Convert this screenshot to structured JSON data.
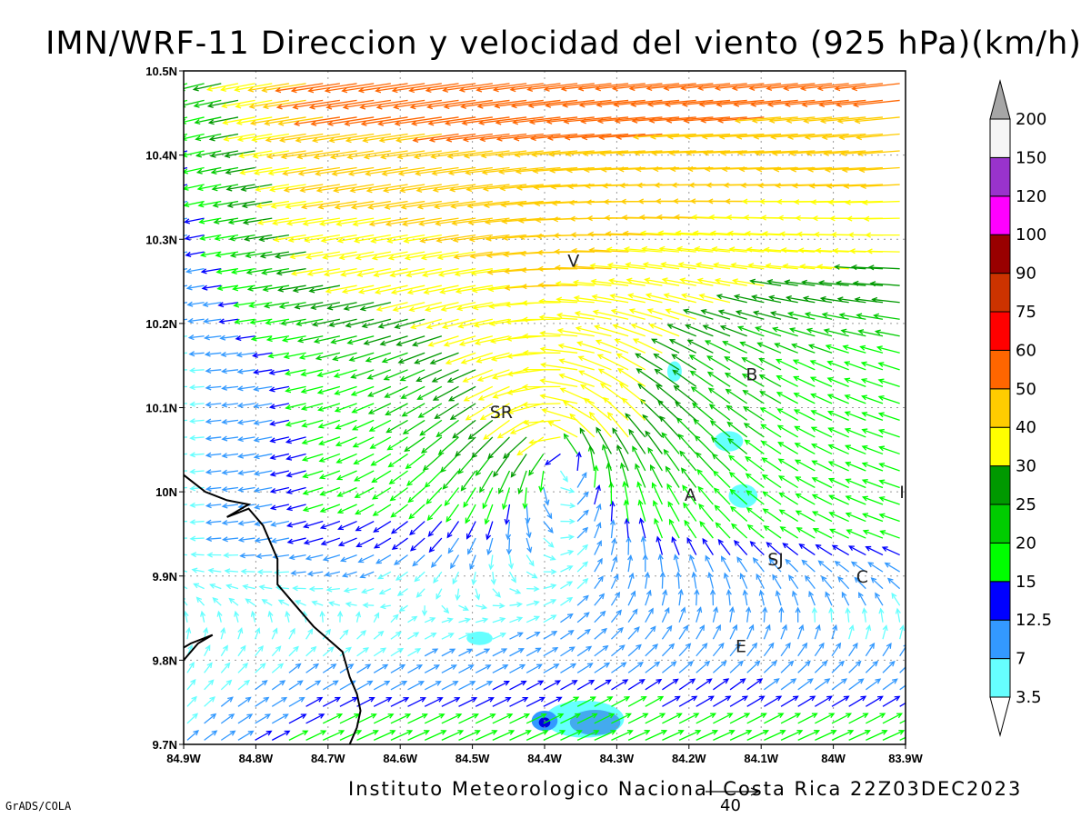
{
  "title": "IMN/WRF-11 Direccion y velocidad del viento (925 hPa)(km/h)",
  "credit": "Instituto Meteorologico Nacional Costa Rica 22Z03DEC2023",
  "software": "GrADS/COLA",
  "reference_vector": {
    "value": "40"
  },
  "map": {
    "projection": "lat-lon",
    "lon_range": [
      -84.9,
      -83.9
    ],
    "lat_range": [
      9.7,
      10.5
    ],
    "x_ticks": [
      "84.9W",
      "84.8W",
      "84.7W",
      "84.6W",
      "84.5W",
      "84.4W",
      "84.3W",
      "84.2W",
      "84.1W",
      "84W",
      "83.9W"
    ],
    "y_ticks": [
      "9.7N",
      "9.8N",
      "9.9N",
      "10N",
      "10.1N",
      "10.2N",
      "10.3N",
      "10.4N",
      "10.5N"
    ],
    "gridlines": "dotted",
    "places": [
      {
        "label": "V",
        "lon": -84.36,
        "lat": 10.275
      },
      {
        "label": "SR",
        "lon": -84.46,
        "lat": 10.095
      },
      {
        "label": "B",
        "lon": -84.113,
        "lat": 10.14
      },
      {
        "label": "A",
        "lon": -84.198,
        "lat": 9.997
      },
      {
        "label": "SJ",
        "lon": -84.08,
        "lat": 9.92
      },
      {
        "label": "C",
        "lon": -83.96,
        "lat": 9.9
      },
      {
        "label": "E",
        "lon": -84.128,
        "lat": 9.817
      },
      {
        "label": "I",
        "lon": -83.905,
        "lat": 10.0
      }
    ],
    "coastline": [
      [
        [
          -84.9,
          10.02
        ],
        [
          -84.87,
          10.0
        ],
        [
          -84.84,
          9.99
        ],
        [
          -84.81,
          9.985
        ],
        [
          -84.84,
          9.97
        ],
        [
          -84.81,
          9.98
        ],
        [
          -84.79,
          9.96
        ],
        [
          -84.77,
          9.92
        ],
        [
          -84.77,
          9.89
        ],
        [
          -84.75,
          9.87
        ],
        [
          -84.72,
          9.84
        ],
        [
          -84.68,
          9.81
        ],
        [
          -84.67,
          9.78
        ],
        [
          -84.66,
          9.76
        ],
        [
          -84.655,
          9.74
        ],
        [
          -84.66,
          9.72
        ],
        [
          -84.67,
          9.7
        ]
      ],
      [
        [
          -84.9,
          9.8
        ],
        [
          -84.88,
          9.82
        ],
        [
          -84.86,
          9.83
        ],
        [
          -84.89,
          9.82
        ],
        [
          -84.9,
          9.815
        ]
      ]
    ],
    "shaded_regions": [
      {
        "lon": -84.345,
        "lat": 9.73,
        "rlon": 0.055,
        "rlat": 0.022,
        "color": "#66ffff"
      },
      {
        "lon": -84.33,
        "lat": 9.726,
        "rlon": 0.035,
        "rlat": 0.015,
        "color": "#44aaee"
      },
      {
        "lon": -84.4,
        "lat": 9.728,
        "rlon": 0.018,
        "rlat": 0.012,
        "color": "#3399ff"
      },
      {
        "lon": -84.4,
        "lat": 9.726,
        "rlon": 0.008,
        "rlat": 0.006,
        "color": "#0000dd"
      },
      {
        "lon": -84.49,
        "lat": 9.826,
        "rlon": 0.018,
        "rlat": 0.008,
        "color": "#66ffff"
      },
      {
        "lon": -84.145,
        "lat": 10.06,
        "rlon": 0.02,
        "rlat": 0.012,
        "color": "#66ffff"
      },
      {
        "lon": -84.125,
        "lat": 9.995,
        "rlon": 0.02,
        "rlat": 0.014,
        "color": "#66ffff"
      },
      {
        "lon": -84.22,
        "lat": 10.143,
        "rlon": 0.01,
        "rlat": 0.012,
        "color": "#66ffff"
      }
    ]
  },
  "legend": {
    "labels": [
      "3.5",
      "7",
      "12.5",
      "15",
      "20",
      "25",
      "30",
      "40",
      "50",
      "60",
      "75",
      "90",
      "100",
      "120",
      "150",
      "200"
    ],
    "colors": [
      "#66ffff",
      "#3399ff",
      "#0000ff",
      "#00ff00",
      "#00cc00",
      "#009900",
      "#ffff00",
      "#ffcc00",
      "#ff6600",
      "#ff0000",
      "#cc3300",
      "#990000",
      "#ff00ff",
      "#9933cc",
      "#f5f5f5"
    ],
    "below_color": "#ffffff",
    "above_color": "#a6a6a6"
  }
}
